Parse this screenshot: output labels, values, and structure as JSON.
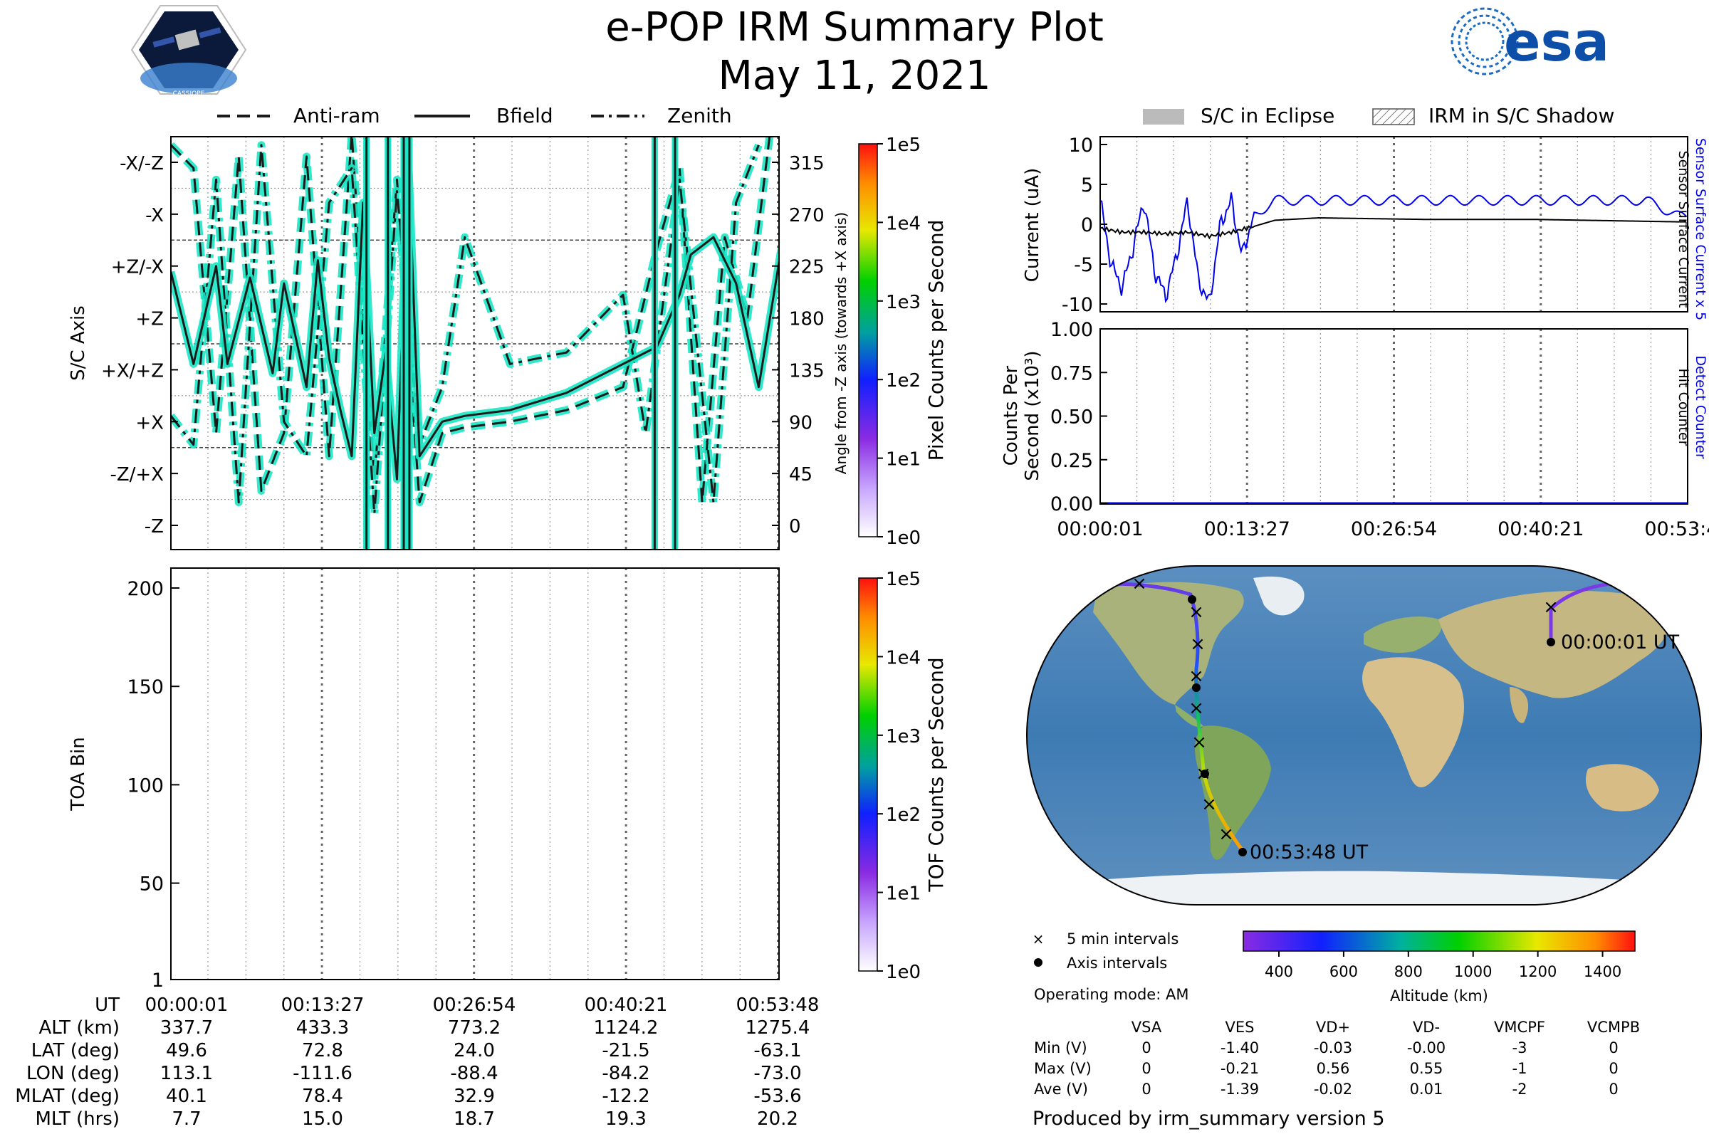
{
  "title": "e-POP IRM Summary Plot",
  "date": "May 11, 2021",
  "logos": {
    "cassiope": "CASSIOPE",
    "esa": "esa"
  },
  "colors": {
    "bfield": "#1a1a1a",
    "glow": "#19e6c4",
    "current_sensor": "#0000ee",
    "current_surface": "#000000"
  },
  "top_legend": {
    "anti_ram": "Anti-ram",
    "bfield": "Bfield",
    "zenith": "Zenith"
  },
  "right_legend": {
    "eclipse": "S/C in Eclipse",
    "shadow": "IRM in S/C Shadow"
  },
  "axis_panel": {
    "ylabel": "S/C Axis",
    "y2label": "Angle from -Z axis (towards +X axis)",
    "categories": [
      "-X/-Z",
      "-X",
      "+Z/-X",
      "+Z",
      "+X/+Z",
      "+X",
      "-Z/+X",
      "-Z"
    ],
    "angles": [
      "315",
      "270",
      "225",
      "180",
      "135",
      "90",
      "45",
      "0"
    ]
  },
  "pixel_colorbar": {
    "label": "Pixel Counts per Second",
    "ticks": [
      "1e5",
      "1e4",
      "1e3",
      "1e2",
      "1e1",
      "1e0"
    ]
  },
  "tof_colorbar": {
    "label": "TOF Counts per Second",
    "ticks": [
      "1e5",
      "1e4",
      "1e3",
      "1e2",
      "1e1",
      "1e0"
    ]
  },
  "toa_panel": {
    "ylabel": "TOA Bin",
    "yticks": [
      "200",
      "150",
      "100",
      "50",
      "1"
    ]
  },
  "ephemeris": {
    "headers": [
      "UT",
      "ALT (km)",
      "LAT (deg)",
      "LON (deg)",
      "MLAT (deg)",
      "MLT (hrs)"
    ],
    "columns": [
      [
        "00:00:01",
        "337.7",
        "49.6",
        "113.1",
        "40.1",
        "7.7"
      ],
      [
        "00:13:27",
        "433.3",
        "72.8",
        "-111.6",
        "78.4",
        "15.0"
      ],
      [
        "00:26:54",
        "773.2",
        "24.0",
        "-88.4",
        "32.9",
        "18.7"
      ],
      [
        "00:40:21",
        "1124.2",
        "-21.5",
        "-84.2",
        "-12.2",
        "19.3"
      ],
      [
        "00:53:48",
        "1275.4",
        "-63.1",
        "-73.0",
        "-53.6",
        "20.2"
      ]
    ]
  },
  "current_panel": {
    "ylabel": "Current (uA)",
    "yticks": [
      "10",
      "5",
      "0",
      "-5",
      "-10"
    ],
    "right_label_blue": "Sensor Surface Current x 5",
    "right_label_black": "Sensor Surface Current"
  },
  "counts_panel": {
    "ylabel_line1": "Counts Per",
    "ylabel_line2": "Second (x10³)",
    "yticks": [
      "1.00",
      "0.75",
      "0.50",
      "0.25",
      "0.00"
    ],
    "right_label_blue": "Detect Counter",
    "right_label_black": "Hit Counter"
  },
  "time_ticks": [
    "00:00:01",
    "00:13:27",
    "00:26:54",
    "00:40:21",
    "00:53:48"
  ],
  "map": {
    "start_label": "00:00:01 UT",
    "end_label": "00:53:48 UT"
  },
  "map_legend": {
    "five_min": "5 min intervals",
    "axis_int": "Axis intervals"
  },
  "altitude_bar": {
    "label": "Altitude (km)",
    "ticks": [
      "400",
      "600",
      "800",
      "1000",
      "1200",
      "1400"
    ]
  },
  "operating_mode": "Operating mode: AM",
  "voltage_table": {
    "headers": [
      "VSA",
      "VES",
      "VD+",
      "VD-",
      "VMCPF",
      "VCMPB"
    ],
    "rows": [
      {
        "label": "Min (V)",
        "values": [
          "0",
          "-1.40",
          "-0.03",
          "-0.00",
          "-3",
          "0"
        ]
      },
      {
        "label": "Max (V)",
        "values": [
          "0",
          "-0.21",
          "0.56",
          "0.55",
          "-1",
          "0"
        ]
      },
      {
        "label": "Ave (V)",
        "values": [
          "0",
          "-1.39",
          "-0.02",
          "0.01",
          "-2",
          "0"
        ]
      }
    ]
  },
  "footer": "Produced by irm_summary version 5",
  "chart_data": [
    {
      "type": "line",
      "title": "S/C Axis",
      "series": [
        {
          "name": "Bfield",
          "x": [
            0,
            2,
            4,
            5,
            7,
            9,
            10,
            12,
            13,
            14,
            15,
            16,
            17,
            18,
            19,
            20,
            21,
            22,
            24,
            26,
            30,
            35,
            40,
            43,
            45,
            46,
            48,
            50,
            52,
            54
          ],
          "values": [
            220,
            140,
            225,
            140,
            215,
            132,
            210,
            120,
            230,
            145,
            100,
            60,
            280,
            80,
            150,
            40,
            320,
            60,
            90,
            95,
            100,
            115,
            140,
            155,
            200,
            235,
            250,
            210,
            120,
            240
          ]
        },
        {
          "name": "Anti-ram",
          "x": [
            0,
            2,
            4,
            6,
            8,
            10,
            12,
            14,
            16,
            18,
            20,
            22,
            24,
            26,
            30,
            35,
            40,
            43,
            45,
            47,
            49,
            51,
            53
          ],
          "values": [
            330,
            310,
            80,
            320,
            30,
            80,
            320,
            60,
            340,
            40,
            300,
            20,
            80,
            85,
            90,
            100,
            120,
            240,
            310,
            20,
            250,
            180,
            340
          ]
        },
        {
          "name": "Zenith",
          "x": [
            0,
            2,
            4,
            6,
            8,
            10,
            12,
            14,
            16,
            18,
            20,
            22,
            24,
            26,
            30,
            35,
            40,
            42,
            45,
            48,
            50,
            52
          ],
          "values": [
            95,
            70,
            300,
            20,
            330,
            90,
            60,
            280,
            310,
            10,
            290,
            70,
            120,
            250,
            140,
            150,
            200,
            80,
            300,
            20,
            280,
            330
          ]
        }
      ],
      "xlabel": "UT",
      "ylim": [
        -20,
        340
      ]
    },
    {
      "type": "line",
      "title": "Current (uA)",
      "series": [
        {
          "name": "Sensor Surface Current x 5",
          "x": [
            0,
            1,
            2,
            3,
            4,
            5,
            6,
            7,
            8,
            9,
            10,
            11,
            12,
            13,
            14,
            16,
            20,
            25,
            30,
            35,
            40,
            45,
            50,
            53
          ],
          "values": [
            3,
            -5,
            -8,
            -3,
            3,
            -6,
            -9,
            -4,
            3,
            -7,
            -10,
            0,
            3,
            -4,
            1,
            3,
            3,
            3,
            3,
            3,
            3,
            3,
            3,
            1
          ]
        },
        {
          "name": "Sensor Surface Current",
          "x": [
            0,
            2,
            4,
            6,
            8,
            10,
            12,
            14,
            16,
            20,
            30,
            40,
            53
          ],
          "values": [
            -0.5,
            -1,
            -1,
            -1.2,
            -1,
            -1.5,
            -1,
            -0.3,
            0.5,
            0.8,
            0.6,
            0.6,
            0.3
          ]
        }
      ],
      "ylim": [
        -11,
        11
      ]
    },
    {
      "type": "line",
      "title": "Counts Per Second (x10³)",
      "series": [
        {
          "name": "Detect Counter",
          "x": [
            0,
            53.8
          ],
          "values": [
            0,
            0
          ]
        },
        {
          "name": "Hit Counter",
          "x": [
            0,
            53.8
          ],
          "values": [
            0,
            0
          ]
        }
      ],
      "ylim": [
        0,
        1
      ]
    },
    {
      "type": "heatmap",
      "title": "TOA Bin",
      "ylim": [
        1,
        210
      ],
      "values": []
    }
  ]
}
